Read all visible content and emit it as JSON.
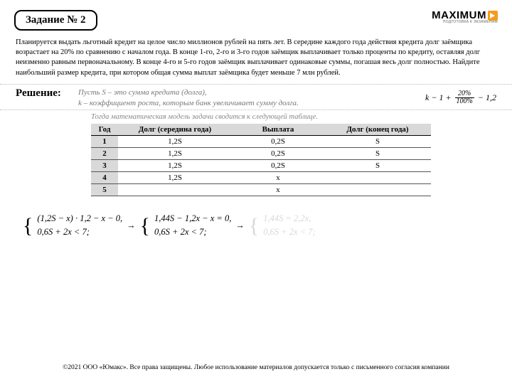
{
  "header": {
    "task_label": "Задание № 2",
    "logo_main": "MAXIMUM",
    "logo_sub": "ПОДГОТОВКА К ЭКЗАМЕНАМ"
  },
  "problem": "Планируется выдать льготный кредит на целое число миллионов рублей на пять лет. В середине каждого года действия кредита долг заёмщика возрастает на 20% по сравнению с началом года. В конце 1-го, 2-го и 3-го годов заёмщик выплачивает только проценты по кредиту, оставляя долг неизменно равным первоначальному. В конце 4-го и 5-го годов заёмщик выплачивает одинаковые суммы, погашая весь долг полностью. Найдите наибольший размер кредита, при котором общая сумма выплат заёмщика будет меньше 7 млн рублей.",
  "solution": {
    "label": "Решение:",
    "premise_line1": "Пусть S – это сумма кредита (долга),",
    "premise_line2": "k – коэффициент роста, которым банк увеличивает сумму долга.",
    "k_eq_lhs": "k − 1 +",
    "k_eq_num": "20%",
    "k_eq_den": "100%",
    "k_eq_rhs": "− 1,2",
    "table_note": "Тогда математическая модель задачи сводится к следующей таблице."
  },
  "table": {
    "headers": {
      "year": "Год",
      "mid": "Долг (середина года)",
      "pay": "Выплата",
      "end": "Долг (конец года)"
    },
    "rows": [
      {
        "year": "1",
        "mid": "1,2S",
        "pay": "0,2S",
        "end": "S"
      },
      {
        "year": "2",
        "mid": "1,2S",
        "pay": "0,2S",
        "end": "S"
      },
      {
        "year": "3",
        "mid": "1,2S",
        "pay": "0,2S",
        "end": "S"
      },
      {
        "year": "4",
        "mid": "1,2S",
        "pay": "x",
        "end": ""
      },
      {
        "year": "5",
        "mid": "",
        "pay": "x",
        "end": ""
      }
    ]
  },
  "equations": {
    "sys1_l1": "(1,2S − x) · 1,2 − x − 0,",
    "sys1_l2": "0,6S + 2x < 7;",
    "arrow": "→",
    "sys2_l1": "1,44S − 1,2x − x = 0,",
    "sys2_l2": "0,6S + 2x < 7;",
    "sys3_l1": "1,44S = 2,2x,",
    "sys3_l2": "0,6S + 2x < 7;"
  },
  "copyright": "©2021 ООО «Юмакс». Все права защищены. Любое использование материалов допускается только с письменного согласия компании"
}
